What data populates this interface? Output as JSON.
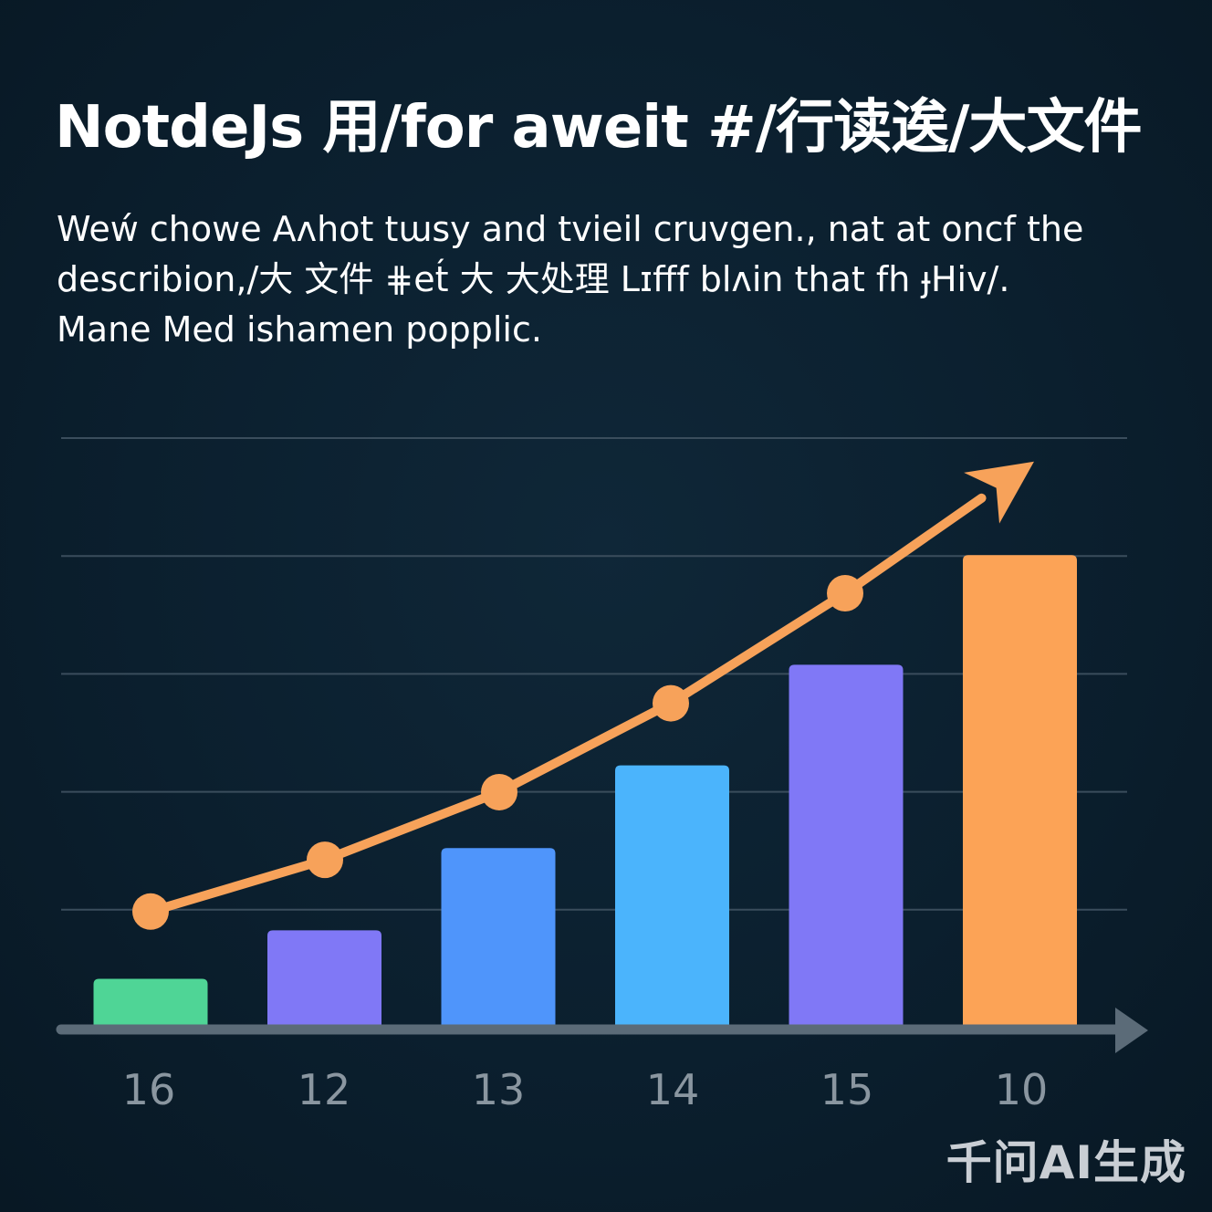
{
  "title": "NotdeJs 用/for aweit #/行读逘/大文件",
  "description": [
    "Weẃ chowe Aʌhot tɯsy and tvieil cruvgen., nat at oncf the",
    "describion,/大 文件 ⋕et́ 大 大处理 Lɪfff blʌin that fh ɟHiv/.",
    "Mane Med ishamen popplic."
  ],
  "watermark": "千问AI生成",
  "colors": {
    "background": "#0b1f2e",
    "text": "#ffffff",
    "grid": "#3a4d5c",
    "axis": "#5b6b78",
    "tick_label": "#8a96a0",
    "trend": "#f7a25a",
    "watermark": "#c9ced4"
  },
  "chart_data": {
    "type": "bar",
    "categories": [
      "16",
      "12",
      "13",
      "14",
      "15",
      "10"
    ],
    "values": [
      1,
      2.03,
      3.78,
      5.54,
      7.68,
      10.01
    ],
    "ylim": [
      0,
      12.5
    ],
    "grid": true,
    "bar_colors": [
      "#4fd596",
      "#8078f6",
      "#4f95fb",
      "#4bb4fc",
      "#8078f6",
      "#fca356"
    ],
    "trend": {
      "type": "line",
      "values": [
        2.43,
        3.53,
        4.97,
        6.86,
        9.2,
        12.0
      ],
      "points": 5,
      "arrow_at_end": true,
      "color": "#f7a25a"
    }
  }
}
